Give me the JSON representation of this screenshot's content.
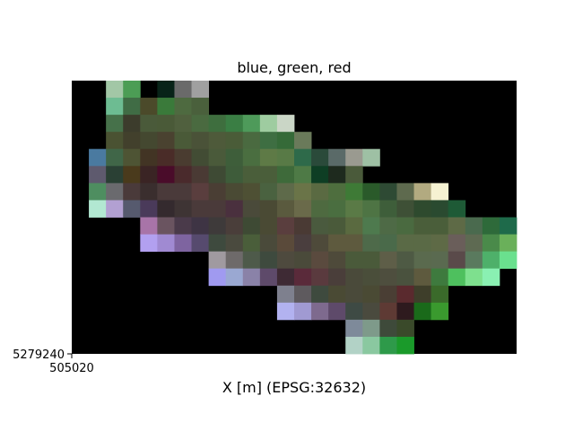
{
  "chart_data": {
    "type": "heatmap",
    "title": "blue, green, red",
    "xlabel": "X [m] (EPSG:32632)",
    "ylabel": "",
    "x_ticks": [
      {
        "value": 505020,
        "label": "505020"
      }
    ],
    "y_ticks": [
      {
        "value": 5279240,
        "label": "5279240"
      }
    ],
    "xlim": [
      505020,
      505280
    ],
    "ylim": [
      5279240,
      5279400
    ],
    "cell_size": 10,
    "grid": false,
    "nodata_color": "#000000",
    "rows": [
      [
        "#000000",
        "#000000",
        "#a2c7a6",
        "#4c9d55",
        "#000000",
        "#082318",
        "#6a6a6a",
        "#a0a0a0",
        "#000000",
        "#000000",
        "#000000",
        "#000000",
        "#000000",
        "#000000",
        "#000000",
        "#000000",
        "#000000",
        "#000000",
        "#000000",
        "#000000",
        "#000000",
        "#000000",
        "#000000",
        "#000000",
        "#000000",
        "#000000"
      ],
      [
        "#000000",
        "#000000",
        "#6dbc92",
        "#406c45",
        "#4b4a2a",
        "#3a7a3a",
        "#4e6a40",
        "#4a603c",
        "#000000",
        "#000000",
        "#000000",
        "#000000",
        "#000000",
        "#000000",
        "#000000",
        "#000000",
        "#000000",
        "#000000",
        "#000000",
        "#000000",
        "#000000",
        "#000000",
        "#000000",
        "#000000",
        "#000000",
        "#000000"
      ],
      [
        "#000000",
        "#000000",
        "#46714a",
        "#3c3c2c",
        "#4a5a3a",
        "#4a5a38",
        "#50603e",
        "#4a6a40",
        "#3e6e3e",
        "#3a7e44",
        "#4e9a5a",
        "#9ecca0",
        "#cad6c6",
        "#000000",
        "#000000",
        "#000000",
        "#000000",
        "#000000",
        "#000000",
        "#000000",
        "#000000",
        "#000000",
        "#000000",
        "#000000",
        "#000000",
        "#000000"
      ],
      [
        "#000000",
        "#000000",
        "#4a5232",
        "#42402c",
        "#444830",
        "#4a4230",
        "#4a5a38",
        "#4a5238",
        "#4e5a3a",
        "#4a5c38",
        "#4a6a40",
        "#3e6e42",
        "#356a38",
        "#6a7a5a",
        "#000000",
        "#000000",
        "#000000",
        "#000000",
        "#000000",
        "#000000",
        "#000000",
        "#000000",
        "#000000",
        "#000000",
        "#000000",
        "#000000"
      ],
      [
        "#000000",
        "#4a7aa0",
        "#406648",
        "#4e5434",
        "#423424",
        "#4a2c28",
        "#4a3c30",
        "#424c34",
        "#4a5a3a",
        "#3e5e3a",
        "#4a6e40",
        "#5e7a46",
        "#587a46",
        "#2e6a4a",
        "#2a4a3a",
        "#5a6a68",
        "#9a9a90",
        "#9ec0a4",
        "#000000",
        "#000000",
        "#000000",
        "#000000",
        "#000000",
        "#000000",
        "#000000",
        "#000000"
      ],
      [
        "#000000",
        "#5e5a6e",
        "#2a4034",
        "#4a3a1c",
        "#3a2424",
        "#4a0c2a",
        "#4a2a2c",
        "#4a3a34",
        "#3e4a34",
        "#3e5c3a",
        "#4a5e3a",
        "#4a5e3a",
        "#3e6a3a",
        "#4e7a46",
        "#0e3e24",
        "#1e2a1e",
        "#4a5a3a",
        "#000000",
        "#000000",
        "#000000",
        "#000000",
        "#000000",
        "#000000",
        "#000000",
        "#000000",
        "#000000"
      ],
      [
        "#000000",
        "#4e8e60",
        "#6a6a6e",
        "#4a3a3a",
        "#3a2e2e",
        "#4a3a3a",
        "#4a3a3a",
        "#5a3e3e",
        "#4a3e34",
        "#4a4a34",
        "#4e5034",
        "#4a6240",
        "#5e6a4a",
        "#6a7448",
        "#5a6a42",
        "#4e6e3e",
        "#3e7a36",
        "#2a5a2a",
        "#2e4a34",
        "#5e6a4e",
        "#b2aa80",
        "#f6f2d2",
        "#000000",
        "#000000",
        "#000000",
        "#000000"
      ],
      [
        "#000000",
        "#b2e8d2",
        "#b2a0d2",
        "#565a6e",
        "#4a3a5a",
        "#342a2e",
        "#3e3434",
        "#4a3a3a",
        "#4a3a3a",
        "#4a303e",
        "#4a4a3a",
        "#4a4a34",
        "#5a5a3e",
        "#6a6a4a",
        "#4e6a40",
        "#4a6e40",
        "#5a7a46",
        "#4e7444",
        "#3e5e3a",
        "#3e5036",
        "#2e4a2e",
        "#2a4a30",
        "#1e5a36",
        "#000000",
        "#000000",
        "#000000"
      ],
      [
        "#000000",
        "#000000",
        "#000000",
        "#000000",
        "#a874a8",
        "#6a5460",
        "#4a3a4a",
        "#3e3444",
        "#3e3a3a",
        "#4a3e3a",
        "#3e4a34",
        "#4a4a34",
        "#5a3e3e",
        "#4a3a34",
        "#4a5a3e",
        "#4a5a3a",
        "#5a6a40",
        "#4e7a4e",
        "#4e6a46",
        "#4a6a40",
        "#4a5e3a",
        "#4a5e3a",
        "#5e6a46",
        "#4a6a4e",
        "#2e6a3a",
        "#1e6a4a"
      ],
      [
        "#000000",
        "#000000",
        "#000000",
        "#000000",
        "#b2a0f0",
        "#a08ad2",
        "#7e64a0",
        "#564a6e",
        "#3e4a3e",
        "#4a4a3e",
        "#4a5e3a",
        "#4a4a3a",
        "#5a4a3a",
        "#4a3e3e",
        "#4e4a3a",
        "#5e5a3e",
        "#5e5a3e",
        "#4e6a4a",
        "#4a6a4a",
        "#5a6a46",
        "#5a6a46",
        "#5e6a46",
        "#6a5e5a",
        "#5e6a52",
        "#4a8a4a",
        "#6ab05a"
      ],
      [
        "#000000",
        "#000000",
        "#000000",
        "#000000",
        "#000000",
        "#000000",
        "#000000",
        "#000000",
        "#a09aa0",
        "#6e6a6a",
        "#4e5a4a",
        "#3e4a3e",
        "#4e4a3e",
        "#4a4a3a",
        "#5a4a3e",
        "#4e4a3a",
        "#4a5a3a",
        "#4a5a3a",
        "#5e5e48",
        "#4e5a44",
        "#5a6a4e",
        "#5a6a50",
        "#5a4a4a",
        "#5a7a5e",
        "#4eb06a",
        "#6ae08e"
      ],
      [
        "#000000",
        "#000000",
        "#000000",
        "#000000",
        "#000000",
        "#000000",
        "#000000",
        "#000000",
        "#a09af0",
        "#9aa8d2",
        "#8a82a8",
        "#5e4a6a",
        "#3e2a34",
        "#5a2a3a",
        "#5a3a3e",
        "#4a3e3a",
        "#4a4a3a",
        "#4a4e3a",
        "#4e4e3e",
        "#4a523e",
        "#5e5a3e",
        "#3e7a3e",
        "#4ec05e",
        "#7ee08e",
        "#8af0b2",
        "#000000"
      ],
      [
        "#000000",
        "#000000",
        "#000000",
        "#000000",
        "#000000",
        "#000000",
        "#000000",
        "#000000",
        "#000000",
        "#000000",
        "#000000",
        "#000000",
        "#7e808e",
        "#5e5a5e",
        "#3e4a3e",
        "#4a4a34",
        "#4a4a3a",
        "#4a4a34",
        "#4a3e34",
        "#5a2a2e",
        "#3e3e2a",
        "#3a6a2a",
        "#000000",
        "#000000",
        "#000000",
        "#000000"
      ],
      [
        "#000000",
        "#000000",
        "#000000",
        "#000000",
        "#000000",
        "#000000",
        "#000000",
        "#000000",
        "#000000",
        "#000000",
        "#000000",
        "#000000",
        "#b2b2f0",
        "#a09ad2",
        "#7e6a8e",
        "#5e4a6a",
        "#3e4a44",
        "#4a4a3e",
        "#5e3a34",
        "#2e1a1e",
        "#1a6a1a",
        "#3a9a2e",
        "#000000",
        "#000000",
        "#000000",
        "#000000"
      ],
      [
        "#000000",
        "#000000",
        "#000000",
        "#000000",
        "#000000",
        "#000000",
        "#000000",
        "#000000",
        "#000000",
        "#000000",
        "#000000",
        "#000000",
        "#000000",
        "#000000",
        "#000000",
        "#000000",
        "#7e8a9a",
        "#7e9a8a",
        "#3e4a3a",
        "#3a4a2a",
        "#000000",
        "#000000",
        "#000000",
        "#000000",
        "#000000",
        "#000000"
      ],
      [
        "#000000",
        "#000000",
        "#000000",
        "#000000",
        "#000000",
        "#000000",
        "#000000",
        "#000000",
        "#000000",
        "#000000",
        "#000000",
        "#000000",
        "#000000",
        "#000000",
        "#000000",
        "#000000",
        "#b2d2c6",
        "#8ac8a0",
        "#2e9a4a",
        "#1a9a2a",
        "#000000",
        "#000000",
        "#000000",
        "#000000",
        "#000000",
        "#000000"
      ]
    ]
  }
}
